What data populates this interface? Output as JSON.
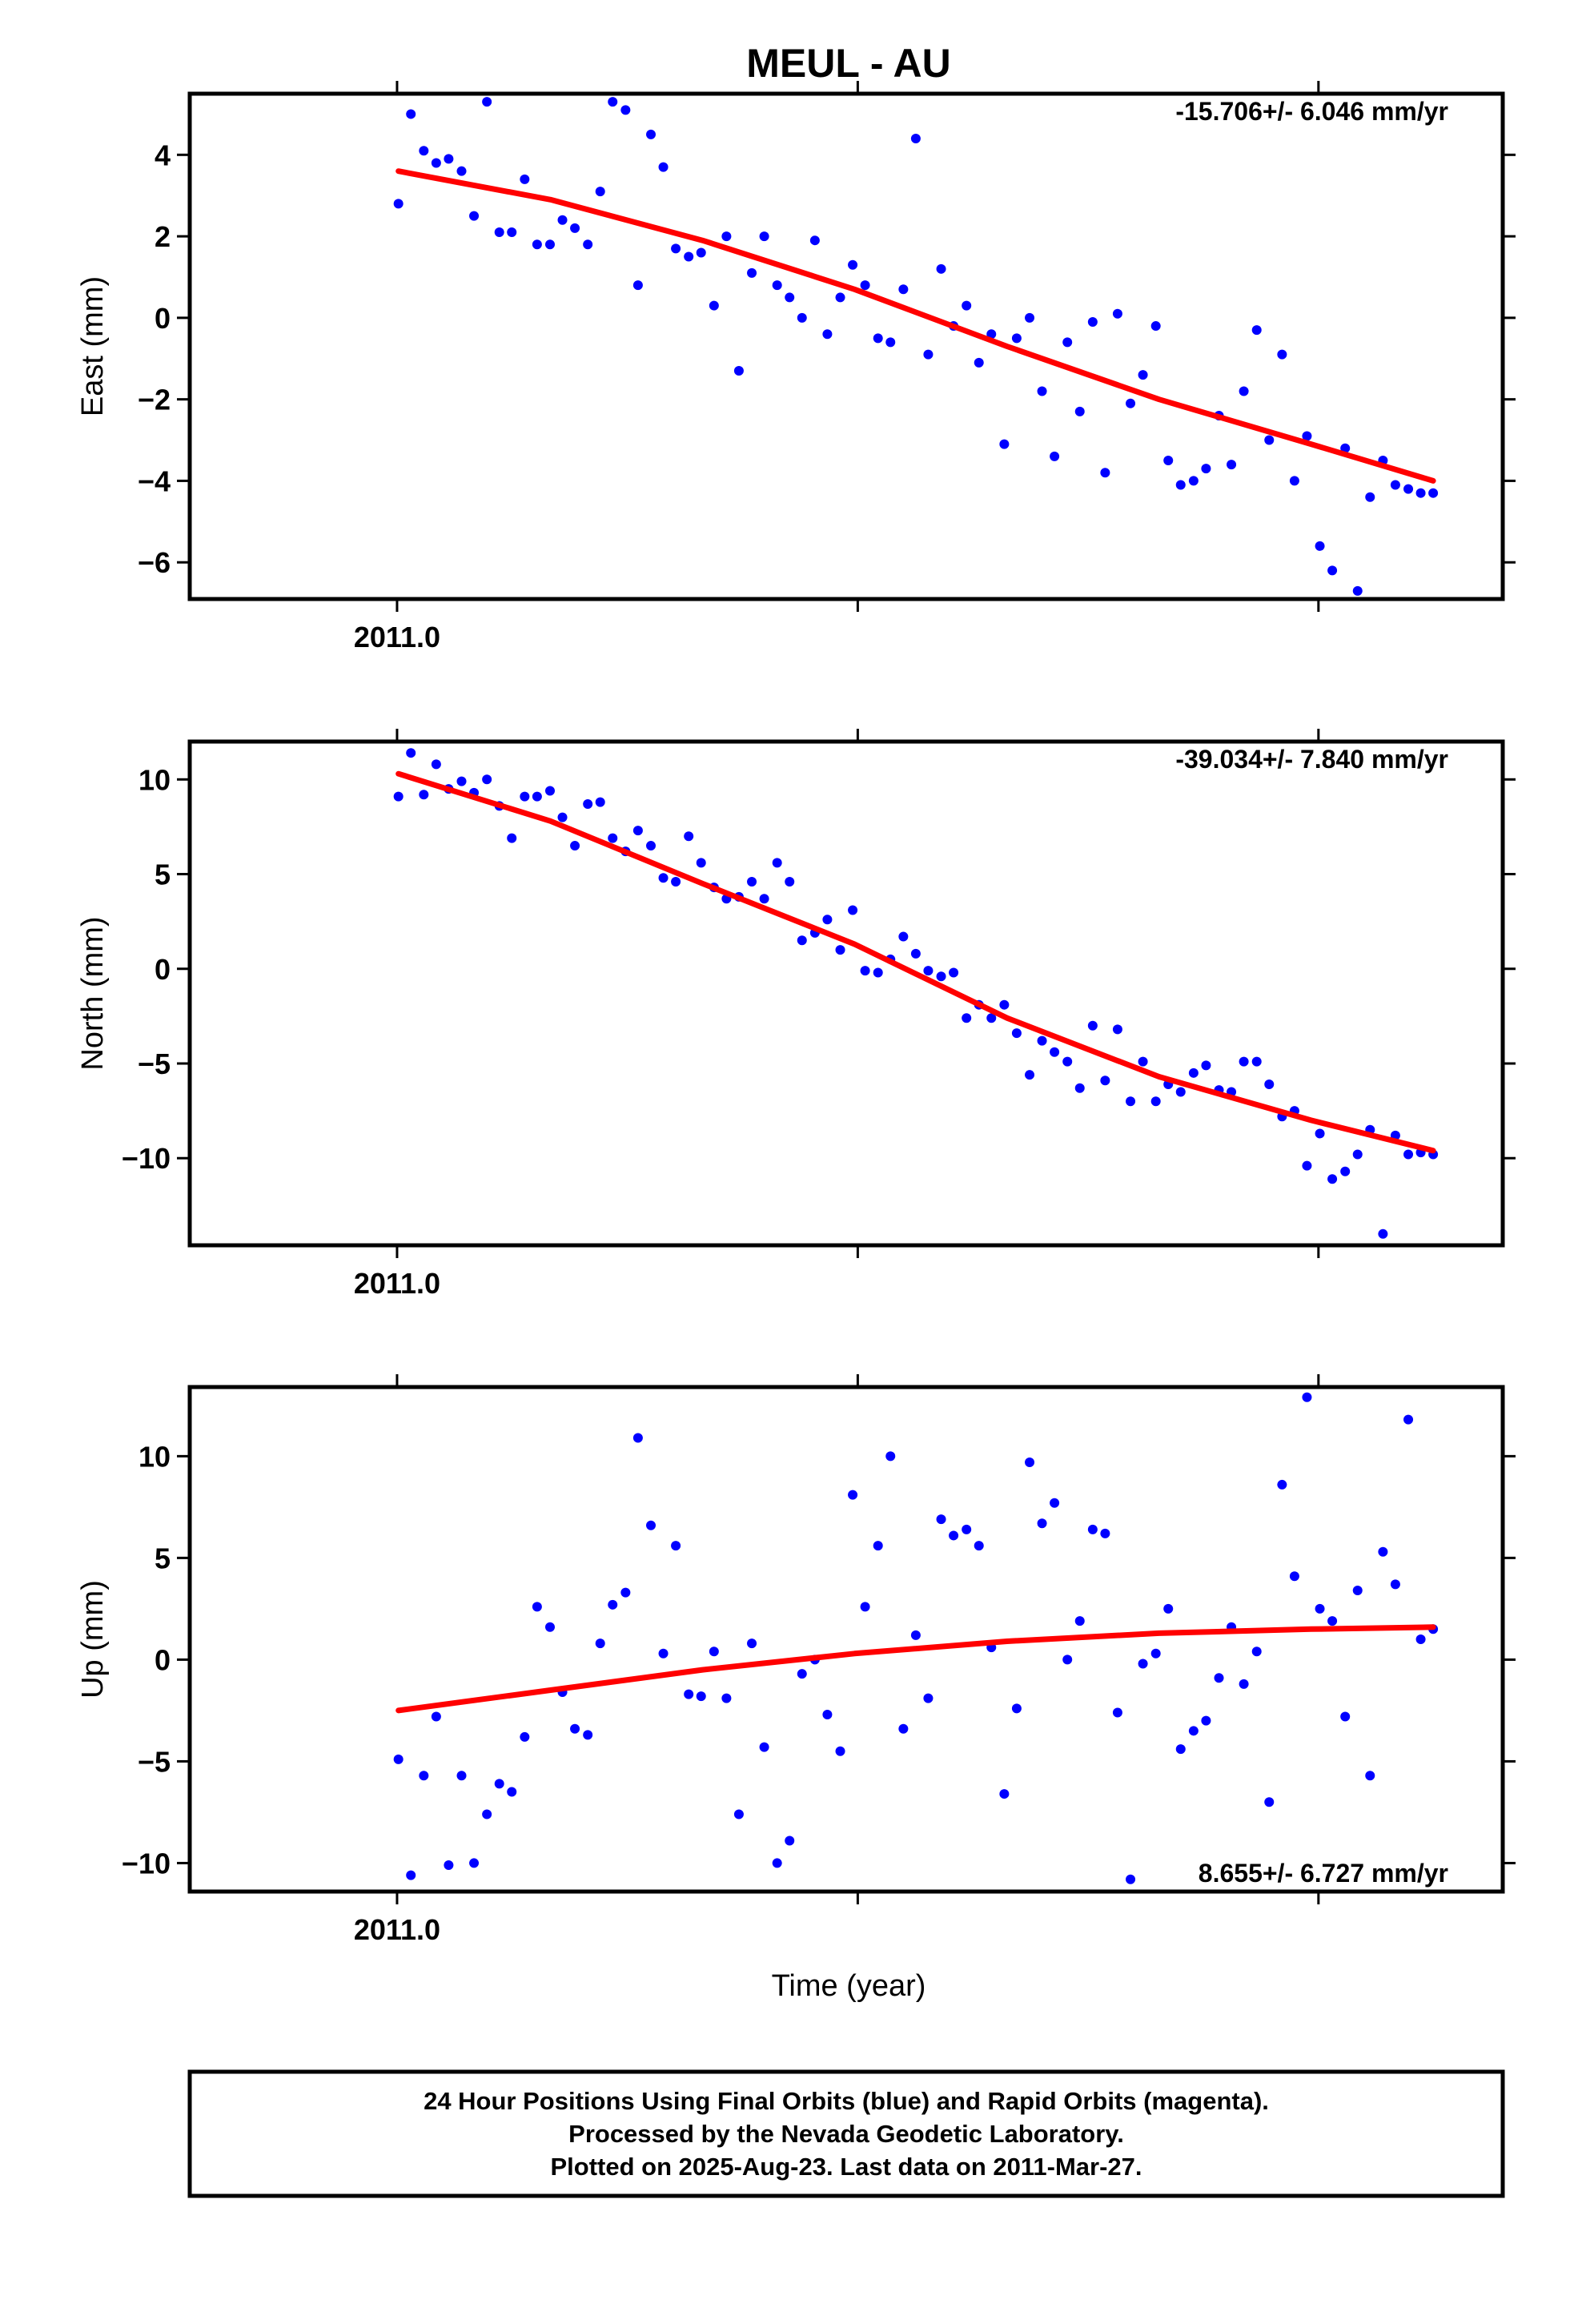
{
  "title": "MEUL - AU",
  "xlabel": "Time (year)",
  "footer": [
    "24 Hour Positions Using Final Orbits (blue) and Rapid Orbits (magenta).",
    "Processed by the Nevada Geodetic Laboratory.",
    "Plotted on 2025-Aug-23. Last data on 2011-Mar-27."
  ],
  "colors": {
    "points": "#0000ff",
    "fit": "#ff0000",
    "frame": "#000000"
  },
  "chart_data": [
    {
      "type": "scatter",
      "name": "east",
      "ylabel": "East (mm)",
      "rate": "-15.706+/- 6.046 mm/yr",
      "rate_position": "top-right",
      "xtick_label": "2011.0",
      "xlim": [
        -0.045,
        0.24
      ],
      "ylim": [
        -6.9,
        5.5
      ],
      "yticks": [
        -6,
        -4,
        -2,
        0,
        2,
        4
      ],
      "ytick_labels": [
        "−6",
        "−4",
        "−2",
        "0",
        "2",
        "4"
      ],
      "x": [
        0.0003,
        0.003,
        0.0058,
        0.0085,
        0.0112,
        0.014,
        0.0167,
        0.0195,
        0.0222,
        0.0249,
        0.0277,
        0.0304,
        0.0332,
        0.0359,
        0.0386,
        0.0414,
        0.0441,
        0.0468,
        0.0496,
        0.0523,
        0.0551,
        0.0578,
        0.0605,
        0.0633,
        0.066,
        0.0688,
        0.0715,
        0.0742,
        0.077,
        0.0797,
        0.0825,
        0.0852,
        0.0879,
        0.0907,
        0.0934,
        0.0962,
        0.0989,
        0.1016,
        0.1044,
        0.1071,
        0.1099,
        0.1126,
        0.1153,
        0.1181,
        0.1208,
        0.1236,
        0.1263,
        0.129,
        0.1318,
        0.1345,
        0.1373,
        0.14,
        0.1427,
        0.1455,
        0.1482,
        0.151,
        0.1537,
        0.1564,
        0.1592,
        0.1619,
        0.1647,
        0.1674,
        0.1701,
        0.1729,
        0.1756,
        0.1784,
        0.1811,
        0.1838,
        0.1866,
        0.1893,
        0.1921,
        0.1948,
        0.1975,
        0.2003,
        0.203,
        0.2058,
        0.2085,
        0.2112,
        0.214,
        0.2167,
        0.2195,
        0.2222,
        0.2249
      ],
      "y": [
        2.8,
        5.0,
        4.1,
        3.8,
        3.9,
        3.6,
        2.5,
        5.3,
        2.1,
        2.1,
        3.4,
        1.8,
        1.8,
        2.4,
        2.2,
        1.8,
        3.1,
        5.3,
        5.1,
        0.8,
        4.5,
        3.7,
        1.7,
        1.5,
        1.6,
        0.3,
        2.0,
        -1.3,
        1.1,
        2.0,
        0.8,
        0.5,
        0.0,
        1.9,
        -0.4,
        0.5,
        1.3,
        0.8,
        -0.5,
        -0.6,
        0.7,
        4.4,
        -0.9,
        1.2,
        -0.2,
        0.3,
        -1.1,
        -0.4,
        -3.1,
        -0.5,
        0.0,
        -1.8,
        -3.4,
        -0.6,
        -2.3,
        -0.1,
        -3.8,
        0.1,
        -2.1,
        -1.4,
        -0.2,
        -3.5,
        -4.1,
        -4.0,
        -3.7,
        -2.4,
        -3.6,
        -1.8,
        -0.3,
        -3.0,
        -0.9,
        -4.0,
        -2.9,
        -5.6,
        -6.2,
        -3.2,
        -6.7,
        -4.4,
        -3.5,
        -4.1,
        -4.2,
        -4.3,
        -4.3
      ],
      "fit_x": [
        0.0003,
        0.0333,
        0.0663,
        0.0993,
        0.1324,
        0.1654,
        0.1984,
        0.2249
      ],
      "fit_y": [
        3.6,
        2.9,
        1.9,
        0.7,
        -0.7,
        -2.0,
        -3.1,
        -4.0
      ]
    },
    {
      "type": "scatter",
      "name": "north",
      "ylabel": "North (mm)",
      "rate": "-39.034+/- 7.840 mm/yr",
      "rate_position": "top-right",
      "xtick_label": "2011.0",
      "xlim": [
        -0.045,
        0.24
      ],
      "ylim": [
        -14.6,
        12.0
      ],
      "yticks": [
        -10,
        -5,
        0,
        5,
        10
      ],
      "ytick_labels": [
        "−10",
        "−5",
        "0",
        "5",
        "10"
      ],
      "x": [
        0.0003,
        0.003,
        0.0058,
        0.0085,
        0.0112,
        0.014,
        0.0167,
        0.0195,
        0.0222,
        0.0249,
        0.0277,
        0.0304,
        0.0332,
        0.0359,
        0.0386,
        0.0414,
        0.0441,
        0.0468,
        0.0496,
        0.0523,
        0.0551,
        0.0578,
        0.0605,
        0.0633,
        0.066,
        0.0688,
        0.0715,
        0.0742,
        0.077,
        0.0797,
        0.0825,
        0.0852,
        0.0879,
        0.0907,
        0.0934,
        0.0962,
        0.0989,
        0.1016,
        0.1044,
        0.1071,
        0.1099,
        0.1126,
        0.1153,
        0.1181,
        0.1208,
        0.1236,
        0.1263,
        0.129,
        0.1318,
        0.1345,
        0.1373,
        0.14,
        0.1427,
        0.1455,
        0.1482,
        0.151,
        0.1537,
        0.1564,
        0.1592,
        0.1619,
        0.1647,
        0.1674,
        0.1701,
        0.1729,
        0.1756,
        0.1784,
        0.1811,
        0.1838,
        0.1866,
        0.1893,
        0.1921,
        0.1948,
        0.1975,
        0.2003,
        0.203,
        0.2058,
        0.2085,
        0.2112,
        0.214,
        0.2167,
        0.2195,
        0.2222,
        0.2249
      ],
      "y": [
        9.1,
        11.4,
        9.2,
        10.8,
        9.5,
        9.9,
        9.3,
        10.0,
        8.6,
        6.9,
        9.1,
        9.1,
        9.4,
        8.0,
        6.5,
        8.7,
        8.8,
        6.9,
        6.2,
        7.3,
        6.5,
        4.8,
        4.6,
        7.0,
        5.6,
        4.3,
        3.7,
        3.8,
        4.6,
        3.7,
        5.6,
        4.6,
        1.5,
        1.9,
        2.6,
        1.0,
        3.1,
        -0.1,
        -0.2,
        0.5,
        1.7,
        0.8,
        -0.1,
        -0.4,
        -0.2,
        -2.6,
        -1.9,
        -2.6,
        -1.9,
        -3.4,
        -5.6,
        -3.8,
        -4.4,
        -4.9,
        -6.3,
        -3.0,
        -5.9,
        -3.2,
        -7.0,
        -4.9,
        -7.0,
        -6.1,
        -6.5,
        -5.5,
        -5.1,
        -6.4,
        -6.5,
        -4.9,
        -4.9,
        -6.1,
        -7.8,
        -7.5,
        -10.4,
        -8.7,
        -11.1,
        -10.7,
        -9.8,
        -8.5,
        -14.0,
        -8.8,
        -9.8,
        -9.7,
        -9.8
      ],
      "fit_x": [
        0.0003,
        0.0333,
        0.0663,
        0.0993,
        0.1324,
        0.1654,
        0.1984,
        0.2249
      ],
      "fit_y": [
        10.3,
        7.8,
        4.5,
        1.3,
        -2.6,
        -5.7,
        -8.0,
        -9.6
      ]
    },
    {
      "type": "scatter",
      "name": "up",
      "ylabel": "Up (mm)",
      "rate": "8.655+/- 6.727 mm/yr",
      "rate_position": "bottom-right",
      "xtick_label": "2011.0",
      "xlim": [
        -0.045,
        0.24
      ],
      "ylim": [
        -11.4,
        13.4
      ],
      "yticks": [
        -10,
        -5,
        0,
        5,
        10
      ],
      "ytick_labels": [
        "−10",
        "−5",
        "0",
        "5",
        "10"
      ],
      "x": [
        0.0003,
        0.003,
        0.0058,
        0.0085,
        0.0112,
        0.014,
        0.0167,
        0.0195,
        0.0222,
        0.0249,
        0.0277,
        0.0304,
        0.0332,
        0.0359,
        0.0386,
        0.0414,
        0.0441,
        0.0468,
        0.0496,
        0.0523,
        0.0551,
        0.0578,
        0.0605,
        0.0633,
        0.066,
        0.0688,
        0.0715,
        0.0742,
        0.077,
        0.0797,
        0.0825,
        0.0852,
        0.0879,
        0.0907,
        0.0934,
        0.0962,
        0.0989,
        0.1016,
        0.1044,
        0.1071,
        0.1099,
        0.1126,
        0.1153,
        0.1181,
        0.1208,
        0.1236,
        0.1263,
        0.129,
        0.1318,
        0.1345,
        0.1373,
        0.14,
        0.1427,
        0.1455,
        0.1482,
        0.151,
        0.1537,
        0.1564,
        0.1592,
        0.1619,
        0.1647,
        0.1674,
        0.1701,
        0.1729,
        0.1756,
        0.1784,
        0.1811,
        0.1838,
        0.1866,
        0.1893,
        0.1921,
        0.1948,
        0.1975,
        0.2003,
        0.203,
        0.2058,
        0.2085,
        0.2112,
        0.214,
        0.2167,
        0.2195,
        0.2222,
        0.2249
      ],
      "y": [
        -4.9,
        -10.6,
        -5.7,
        -2.8,
        -10.1,
        -5.7,
        -10.0,
        -7.6,
        -6.1,
        -6.5,
        -3.8,
        2.6,
        1.6,
        -1.6,
        -3.4,
        -3.7,
        0.8,
        2.7,
        3.3,
        10.9,
        6.6,
        0.3,
        5.6,
        -1.7,
        -1.8,
        0.4,
        -1.9,
        -7.6,
        0.8,
        -4.3,
        -10.0,
        -8.9,
        -0.7,
        0.0,
        -2.7,
        -4.5,
        8.1,
        2.6,
        5.6,
        10.0,
        -3.4,
        1.2,
        -1.9,
        6.9,
        6.1,
        6.4,
        5.6,
        0.6,
        -6.6,
        -2.4,
        9.7,
        6.7,
        7.7,
        0.0,
        1.9,
        6.4,
        6.2,
        -2.6,
        -10.8,
        -0.2,
        0.3,
        2.5,
        -4.4,
        -3.5,
        -3.0,
        -0.9,
        1.6,
        -1.2,
        0.4,
        -7.0,
        8.6,
        4.1,
        12.9,
        2.5,
        1.9,
        -2.8,
        3.4,
        -5.7,
        5.3,
        3.7,
        11.8,
        1.0,
        1.5
      ],
      "fit_x": [
        0.0003,
        0.0333,
        0.0663,
        0.0993,
        0.1324,
        0.1654,
        0.1984,
        0.2249
      ],
      "fit_y": [
        -2.5,
        -1.5,
        -0.5,
        0.3,
        0.9,
        1.3,
        1.5,
        1.6
      ]
    }
  ]
}
